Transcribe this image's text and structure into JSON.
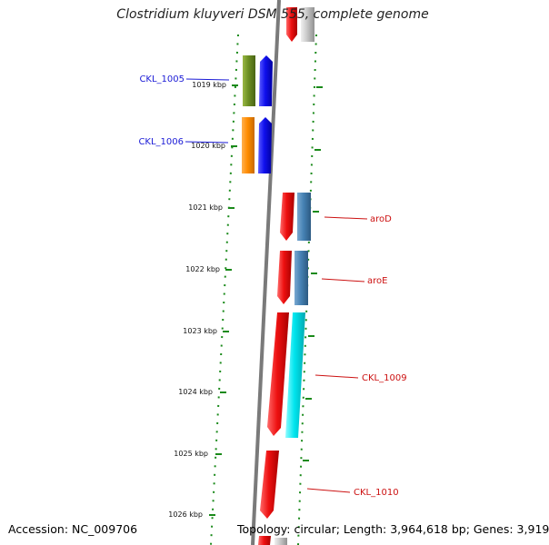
{
  "title": "Clostridium kluyveri DSM 555, complete genome",
  "footer": {
    "accession": "Accession: NC_009706",
    "stats": "Topology: circular; Length: 3,964,618 bp; Genes: 3,919"
  },
  "scale_labels": [
    "1019 kbp",
    "1020 kbp",
    "1021 kbp",
    "1022 kbp",
    "1023 kbp",
    "1024 kbp",
    "1025 kbp",
    "1026 kbp"
  ],
  "gene_labels": [
    {
      "id": "ckl1005",
      "text": "CKL_1005",
      "color": "#1b1bd6"
    },
    {
      "id": "ckl1006",
      "text": "CKL_1006",
      "color": "#1b1bd6"
    },
    {
      "id": "arod",
      "text": "aroD",
      "color": "#cc1111"
    },
    {
      "id": "aroe",
      "text": "aroE",
      "color": "#cc1111"
    },
    {
      "id": "ckl1009",
      "text": "CKL_1009",
      "color": "#cc1111"
    },
    {
      "id": "ckl1010",
      "text": "CKL_1010",
      "color": "#cc1111"
    }
  ],
  "colors": {
    "backbone": "#777777",
    "scale_ticks": "#1a8a1a",
    "red_gene": "#ee1111",
    "blue_gene": "#1010ee",
    "green_gene": "#6b8e23",
    "orange_gene": "#ff8c00",
    "steelblue_gene": "#4682b4",
    "cyan_gene": "#00e5ee",
    "grey_gene": "#c8c8c8"
  }
}
